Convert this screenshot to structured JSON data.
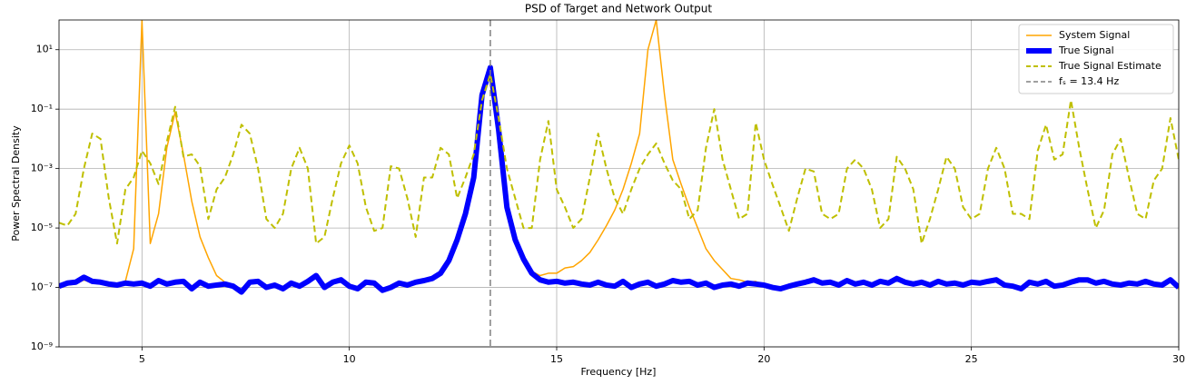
{
  "chart_data": {
    "type": "line",
    "title": "PSD of Target and Network Output",
    "xlabel": "Frequency [Hz]",
    "ylabel": "Power Spectral Density",
    "yscale": "log",
    "grid": true,
    "legend": "upper right",
    "xlim": [
      3,
      30
    ],
    "xticks": [
      5,
      10,
      15,
      20,
      25,
      30
    ],
    "ylim": [
      1e-09,
      100
    ],
    "yticks": [
      {
        "value": 1e-09,
        "label": "10⁻⁹"
      },
      {
        "value": 1e-07,
        "label": "10⁻⁷"
      },
      {
        "value": 1e-05,
        "label": "10⁻⁵"
      },
      {
        "value": 0.001,
        "label": "10⁻³"
      },
      {
        "value": 0.1,
        "label": "10⁻¹"
      },
      {
        "value": 10,
        "label": "10¹"
      }
    ],
    "x": [
      3.0,
      3.2,
      3.4,
      3.6,
      3.8,
      4.0,
      4.2,
      4.4,
      4.6,
      4.8,
      5.0,
      5.2,
      5.4,
      5.6,
      5.8,
      6.0,
      6.2,
      6.4,
      6.6,
      6.8,
      7.0,
      7.2,
      7.4,
      7.6,
      7.8,
      8.0,
      8.2,
      8.4,
      8.6,
      8.8,
      9.0,
      9.2,
      9.4,
      9.6,
      9.8,
      10.0,
      10.2,
      10.4,
      10.6,
      10.8,
      11.0,
      11.2,
      11.4,
      11.6,
      11.8,
      12.0,
      12.2,
      12.4,
      12.6,
      12.8,
      13.0,
      13.2,
      13.4,
      13.6,
      13.8,
      14.0,
      14.2,
      14.4,
      14.6,
      14.8,
      15.0,
      15.2,
      15.4,
      15.6,
      15.8,
      16.0,
      16.2,
      16.4,
      16.6,
      16.8,
      17.0,
      17.2,
      17.4,
      17.6,
      17.8,
      18.0,
      18.2,
      18.4,
      18.6,
      18.8,
      19.0,
      19.2,
      19.4,
      19.6,
      19.8,
      20.0,
      20.2,
      20.4,
      20.6,
      20.8,
      21.0,
      21.2,
      21.4,
      21.6,
      21.8,
      22.0,
      22.2,
      22.4,
      22.6,
      22.8,
      23.0,
      23.2,
      23.4,
      23.6,
      23.8,
      24.0,
      24.2,
      24.4,
      24.6,
      24.8,
      25.0,
      25.2,
      25.4,
      25.6,
      25.8,
      26.0,
      26.2,
      26.4,
      26.6,
      26.8,
      27.0,
      27.2,
      27.4,
      27.6,
      27.8,
      28.0,
      28.2,
      28.4,
      28.6,
      28.8,
      29.0,
      29.2,
      29.4,
      29.6,
      29.8,
      30.0
    ],
    "series": [
      {
        "name": "System Signal",
        "color": "#ffa500",
        "linewidth": 1.5,
        "linestyle": "solid",
        "values": [
          1e-07,
          1.2e-07,
          1.3e-07,
          1.8e-07,
          1.4e-07,
          1.3e-07,
          1.1e-07,
          1.1e-07,
          1.6e-07,
          2e-06,
          100,
          3e-06,
          3e-05,
          0.005,
          0.08,
          0.003,
          8e-05,
          5e-06,
          1e-06,
          2.5e-07,
          1.5e-07,
          1e-07,
          6e-08,
          1.3e-07,
          1.4e-07,
          9e-08,
          1.1e-07,
          8e-08,
          1.2e-07,
          1e-07,
          1.4e-07,
          2.2e-07,
          9e-08,
          1.3e-07,
          1.6e-07,
          1e-07,
          8e-08,
          1.3e-07,
          1.2e-07,
          7e-08,
          9e-08,
          1.2e-07,
          1.1e-07,
          1.3e-07,
          1.5e-07,
          2e-07,
          3e-07,
          8e-07,
          4e-06,
          3e-05,
          0.0005,
          0.3,
          2.5,
          0.02,
          5e-05,
          4e-06,
          9e-07,
          3.5e-07,
          2.5e-07,
          3e-07,
          3e-07,
          4.5e-07,
          5e-07,
          8e-07,
          1.5e-06,
          4e-06,
          1.2e-05,
          4e-05,
          0.0002,
          0.0015,
          0.015,
          10,
          100,
          0.3,
          0.002,
          0.0003,
          5e-05,
          1e-05,
          2e-06,
          8e-07,
          4e-07,
          2e-07,
          1.8e-07,
          1.5e-07,
          1.6e-07,
          1.1e-07,
          9e-08,
          8e-08,
          1e-07,
          1.2e-07,
          1.4e-07,
          1.7e-07,
          1.3e-07,
          1.4e-07,
          1.1e-07,
          1.6e-07,
          1.2e-07,
          1.4e-07,
          1.1e-07,
          1.5e-07,
          1.3e-07,
          1.9e-07,
          1.4e-07,
          1.2e-07,
          1.4e-07,
          1.1e-07,
          1.5e-07,
          1.2e-07,
          1.3e-07,
          1.1e-07,
          1.4e-07,
          1.3e-07,
          1.5e-07,
          1.7e-07,
          1.1e-07,
          1e-07,
          8e-08,
          1.4e-07,
          1.2e-07,
          1.5e-07,
          1e-07,
          1.1e-07,
          1.4e-07,
          1.7e-07,
          1.7e-07,
          1.3e-07,
          1.5e-07,
          1.2e-07,
          1.1e-07,
          1.3e-07,
          1.2e-07,
          1.5e-07,
          1.2e-07,
          1.1e-07,
          1.7e-07,
          9e-08
        ]
      },
      {
        "name": "True Signal",
        "color": "#0000ff",
        "linewidth": 6,
        "linestyle": "solid",
        "values": [
          1.1e-07,
          1.4e-07,
          1.5e-07,
          2.2e-07,
          1.6e-07,
          1.5e-07,
          1.3e-07,
          1.2e-07,
          1.4e-07,
          1.3e-07,
          1.4e-07,
          1.1e-07,
          1.7e-07,
          1.3e-07,
          1.5e-07,
          1.6e-07,
          9e-08,
          1.5e-07,
          1.1e-07,
          1.2e-07,
          1.3e-07,
          1.1e-07,
          7e-08,
          1.5e-07,
          1.6e-07,
          1e-07,
          1.2e-07,
          9e-08,
          1.4e-07,
          1.1e-07,
          1.6e-07,
          2.5e-07,
          1e-07,
          1.5e-07,
          1.8e-07,
          1.1e-07,
          9e-08,
          1.5e-07,
          1.4e-07,
          8e-08,
          1e-07,
          1.4e-07,
          1.2e-07,
          1.5e-07,
          1.7e-07,
          2e-07,
          3e-07,
          8e-07,
          4e-06,
          3e-05,
          0.0005,
          0.3,
          2.5,
          0.02,
          5e-05,
          4e-06,
          9e-07,
          3e-07,
          1.8e-07,
          1.5e-07,
          1.6e-07,
          1.4e-07,
          1.5e-07,
          1.3e-07,
          1.2e-07,
          1.5e-07,
          1.2e-07,
          1.1e-07,
          1.6e-07,
          1e-07,
          1.3e-07,
          1.5e-07,
          1.1e-07,
          1.3e-07,
          1.7e-07,
          1.5e-07,
          1.6e-07,
          1.2e-07,
          1.4e-07,
          1e-07,
          1.2e-07,
          1.3e-07,
          1.1e-07,
          1.4e-07,
          1.3e-07,
          1.2e-07,
          1e-07,
          9e-08,
          1.1e-07,
          1.3e-07,
          1.5e-07,
          1.8e-07,
          1.4e-07,
          1.5e-07,
          1.2e-07,
          1.7e-07,
          1.3e-07,
          1.5e-07,
          1.2e-07,
          1.6e-07,
          1.4e-07,
          2e-07,
          1.5e-07,
          1.3e-07,
          1.5e-07,
          1.2e-07,
          1.6e-07,
          1.3e-07,
          1.4e-07,
          1.2e-07,
          1.5e-07,
          1.4e-07,
          1.6e-07,
          1.8e-07,
          1.2e-07,
          1.1e-07,
          9e-08,
          1.5e-07,
          1.3e-07,
          1.6e-07,
          1.1e-07,
          1.2e-07,
          1.5e-07,
          1.8e-07,
          1.8e-07,
          1.4e-07,
          1.6e-07,
          1.3e-07,
          1.2e-07,
          1.4e-07,
          1.3e-07,
          1.6e-07,
          1.3e-07,
          1.2e-07,
          1.8e-07,
          1e-07
        ]
      },
      {
        "name": "True Signal Estimate",
        "color": "#bfbf00",
        "linewidth": 2,
        "linestyle": "dashed",
        "values": [
          1.5e-05,
          1.2e-05,
          3e-05,
          0.001,
          0.015,
          0.01,
          0.0001,
          3e-06,
          0.0002,
          0.0005,
          0.004,
          0.0015,
          0.0003,
          0.008,
          0.12,
          0.0025,
          0.003,
          0.0012,
          2e-05,
          0.0002,
          0.0005,
          0.003,
          0.03,
          0.015,
          0.001,
          2e-05,
          1e-05,
          3e-05,
          0.001,
          0.005,
          0.001,
          3e-06,
          5e-06,
          0.0001,
          0.0015,
          0.006,
          0.0015,
          5e-05,
          8e-06,
          1e-05,
          0.0012,
          0.001,
          0.0001,
          5e-06,
          0.0005,
          0.0005,
          0.005,
          0.003,
          0.0001,
          0.0005,
          0.003,
          0.2,
          1.5,
          0.05,
          0.001,
          0.0001,
          1e-05,
          1e-05,
          0.002,
          0.04,
          0.0002,
          5e-05,
          1e-05,
          2e-05,
          0.0005,
          0.015,
          0.001,
          0.0001,
          3e-05,
          0.0002,
          0.001,
          0.003,
          0.007,
          0.0015,
          0.0004,
          0.0002,
          2e-05,
          4e-05,
          0.005,
          0.1,
          0.002,
          0.0002,
          2e-05,
          3e-05,
          0.035,
          0.002,
          0.0003,
          5e-05,
          8e-06,
          0.0001,
          0.001,
          0.0008,
          3e-05,
          2e-05,
          3e-05,
          0.001,
          0.002,
          0.001,
          0.0002,
          1e-05,
          2e-05,
          0.0025,
          0.001,
          0.0002,
          3e-06,
          2e-05,
          0.0002,
          0.0025,
          0.001,
          5e-05,
          2e-05,
          3e-05,
          0.001,
          0.005,
          0.001,
          3e-05,
          3e-05,
          2e-05,
          0.004,
          0.03,
          0.002,
          0.003,
          0.2,
          0.005,
          0.0002,
          1e-05,
          4e-05,
          0.003,
          0.01,
          0.0005,
          3e-05,
          2e-05,
          0.0004,
          0.001,
          0.05,
          0.002
        ]
      }
    ],
    "vlines": [
      {
        "x": 13.4,
        "name": "fₛ = 13.4 Hz",
        "color": "#808080",
        "linestyle": "dashed"
      }
    ]
  }
}
